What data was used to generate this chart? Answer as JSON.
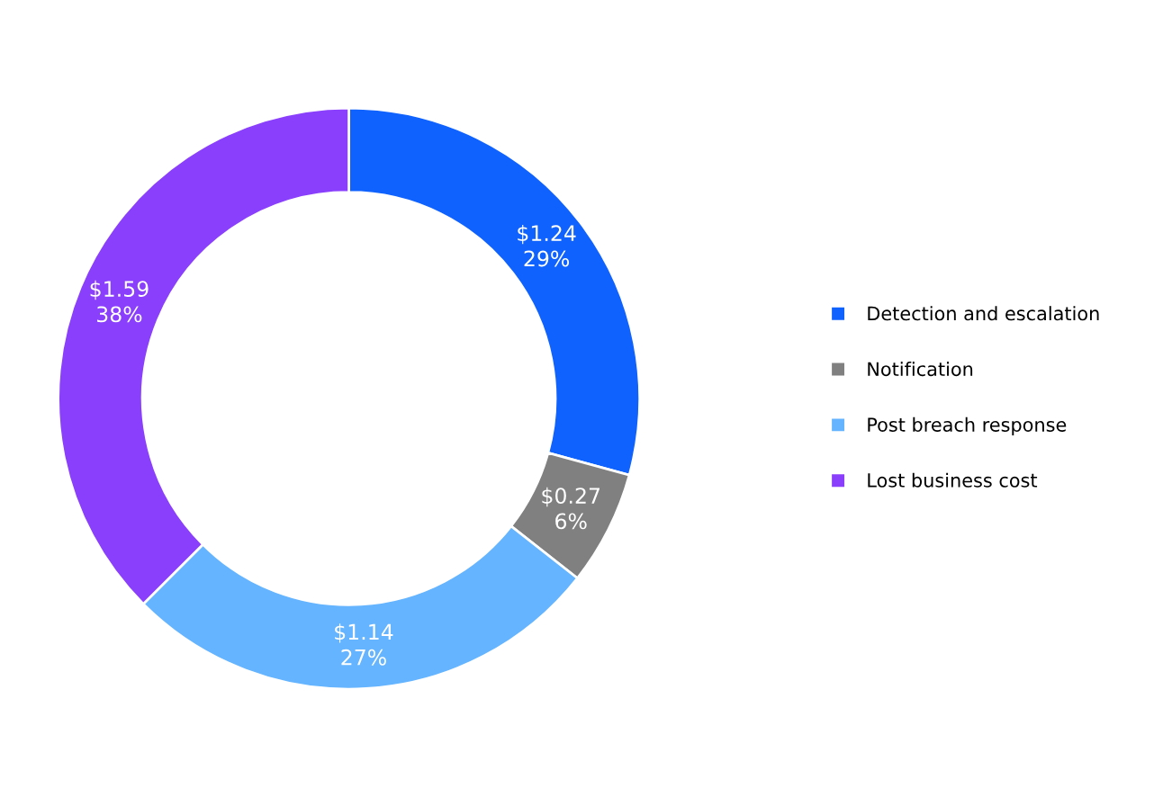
{
  "chart_data": {
    "type": "donut",
    "categories": [
      "Detection and escalation",
      "Notification",
      "Post breach response",
      "Lost business cost"
    ],
    "values": [
      1.24,
      0.27,
      1.14,
      1.59
    ],
    "colors": [
      "#0f62fe",
      "#808080",
      "#64b4ff",
      "#8a3ffc"
    ],
    "value_labels": [
      "$1.24\n29%",
      "$0.27\n6%",
      "$1.14\n27%",
      "$1.59\n38%"
    ],
    "legend": "right"
  }
}
